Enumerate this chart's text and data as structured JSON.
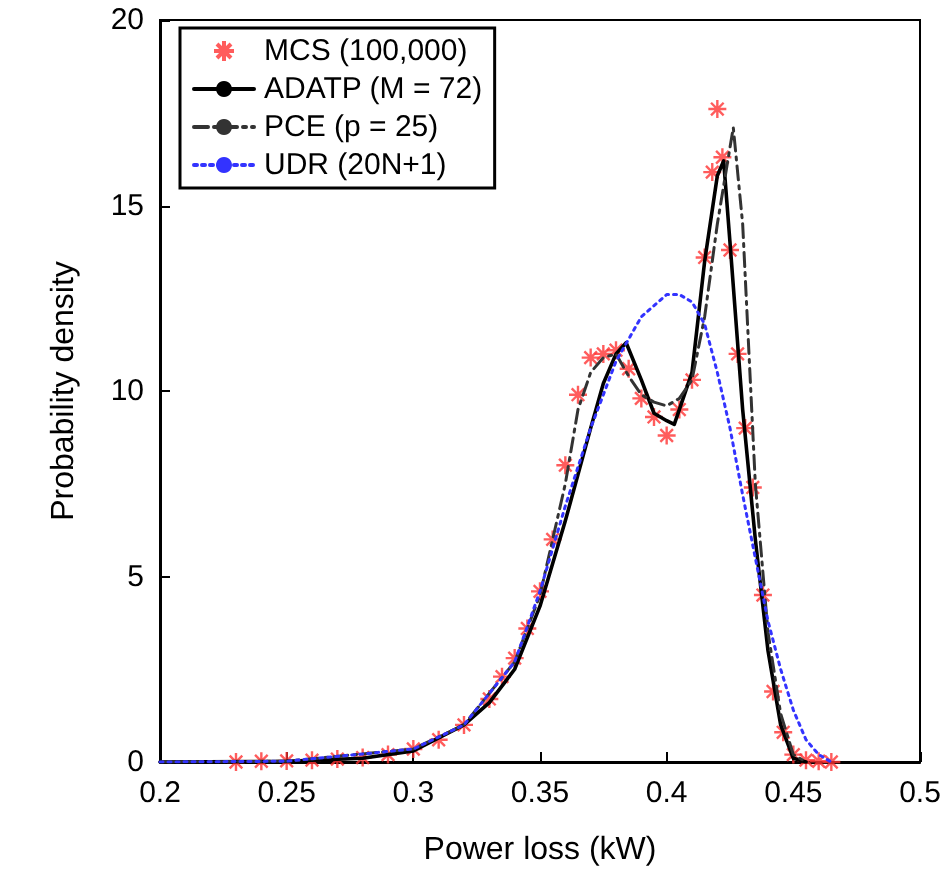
{
  "chart_data": {
    "type": "line",
    "xlabel": "Power loss (kW)",
    "ylabel": "Probability density",
    "xlim": [
      0.2,
      0.5
    ],
    "xticks": [
      0.2,
      0.25,
      0.3,
      0.35,
      0.4,
      0.45,
      0.5
    ],
    "ylim": [
      0,
      20
    ],
    "yticks": [
      0,
      5,
      10,
      15,
      20
    ],
    "grid": false,
    "legend": "top left",
    "series": [
      {
        "name": "MCS (100,000)",
        "type": "scatter",
        "marker": "cross",
        "color": "#ff3333",
        "x": [
          0.23,
          0.24,
          0.25,
          0.26,
          0.27,
          0.28,
          0.29,
          0.3,
          0.31,
          0.32,
          0.33,
          0.335,
          0.34,
          0.345,
          0.35,
          0.355,
          0.36,
          0.365,
          0.37,
          0.375,
          0.38,
          0.385,
          0.39,
          0.395,
          0.4,
          0.405,
          0.41,
          0.415,
          0.418,
          0.42,
          0.422,
          0.425,
          0.428,
          0.431,
          0.434,
          0.438,
          0.442,
          0.446,
          0.45,
          0.455,
          0.46,
          0.465
        ],
        "values": [
          0,
          0.02,
          0.03,
          0.05,
          0.08,
          0.12,
          0.2,
          0.35,
          0.6,
          1.0,
          1.7,
          2.3,
          2.8,
          3.6,
          4.6,
          6.0,
          8.0,
          9.9,
          10.9,
          11.0,
          11.1,
          10.6,
          9.8,
          9.3,
          8.8,
          9.5,
          10.3,
          13.6,
          15.9,
          17.6,
          16.3,
          13.8,
          11.0,
          9.0,
          7.4,
          4.5,
          1.9,
          0.8,
          0.2,
          0.05,
          0.02,
          0
        ]
      },
      {
        "name": "ADATP (M = 72)",
        "type": "line",
        "line_style": "solid",
        "color": "#000000",
        "x": [
          0.2,
          0.25,
          0.28,
          0.3,
          0.32,
          0.33,
          0.34,
          0.35,
          0.36,
          0.37,
          0.375,
          0.38,
          0.384,
          0.39,
          0.395,
          0.4,
          0.403,
          0.41,
          0.415,
          0.42,
          0.4225,
          0.425,
          0.43,
          0.435,
          0.44,
          0.445,
          0.45,
          0.455
        ],
        "values": [
          0,
          0.02,
          0.1,
          0.3,
          1.0,
          1.6,
          2.5,
          4.2,
          6.5,
          9.0,
          10.2,
          11.0,
          11.3,
          10.3,
          9.4,
          9.2,
          9.1,
          10.5,
          13.5,
          15.8,
          16.2,
          14.0,
          9.5,
          6.0,
          3.0,
          1.0,
          0.1,
          0
        ]
      },
      {
        "name": "PCE (p = 25)",
        "type": "line",
        "line_style": "dashdot",
        "color": "#333333",
        "x": [
          0.2,
          0.25,
          0.3,
          0.32,
          0.34,
          0.35,
          0.36,
          0.365,
          0.37,
          0.375,
          0.38,
          0.385,
          0.39,
          0.395,
          0.4,
          0.405,
          0.41,
          0.415,
          0.42,
          0.4263,
          0.43,
          0.435,
          0.44,
          0.445,
          0.45,
          0.455
        ],
        "values": [
          0,
          0.02,
          0.35,
          1.0,
          2.7,
          4.5,
          7.5,
          9.5,
          10.5,
          10.9,
          11.0,
          10.4,
          9.9,
          9.7,
          9.6,
          9.8,
          10.3,
          12.0,
          14.5,
          17.1,
          14.5,
          7.5,
          3.5,
          1.3,
          0.2,
          0
        ]
      },
      {
        "name": "UDR (20N+1)",
        "type": "line",
        "line_style": "dotted",
        "color": "#3333ff",
        "x": [
          0.2,
          0.25,
          0.3,
          0.32,
          0.34,
          0.35,
          0.36,
          0.37,
          0.38,
          0.39,
          0.4,
          0.405,
          0.41,
          0.415,
          0.42,
          0.425,
          0.43,
          0.435,
          0.44,
          0.445,
          0.45,
          0.455,
          0.46,
          0.465
        ],
        "values": [
          0,
          0.02,
          0.35,
          1.0,
          2.7,
          4.6,
          6.9,
          9.0,
          10.8,
          12.0,
          12.6,
          12.6,
          12.4,
          11.8,
          10.5,
          9.0,
          7.2,
          5.5,
          3.8,
          2.5,
          1.4,
          0.6,
          0.2,
          0
        ]
      }
    ]
  }
}
